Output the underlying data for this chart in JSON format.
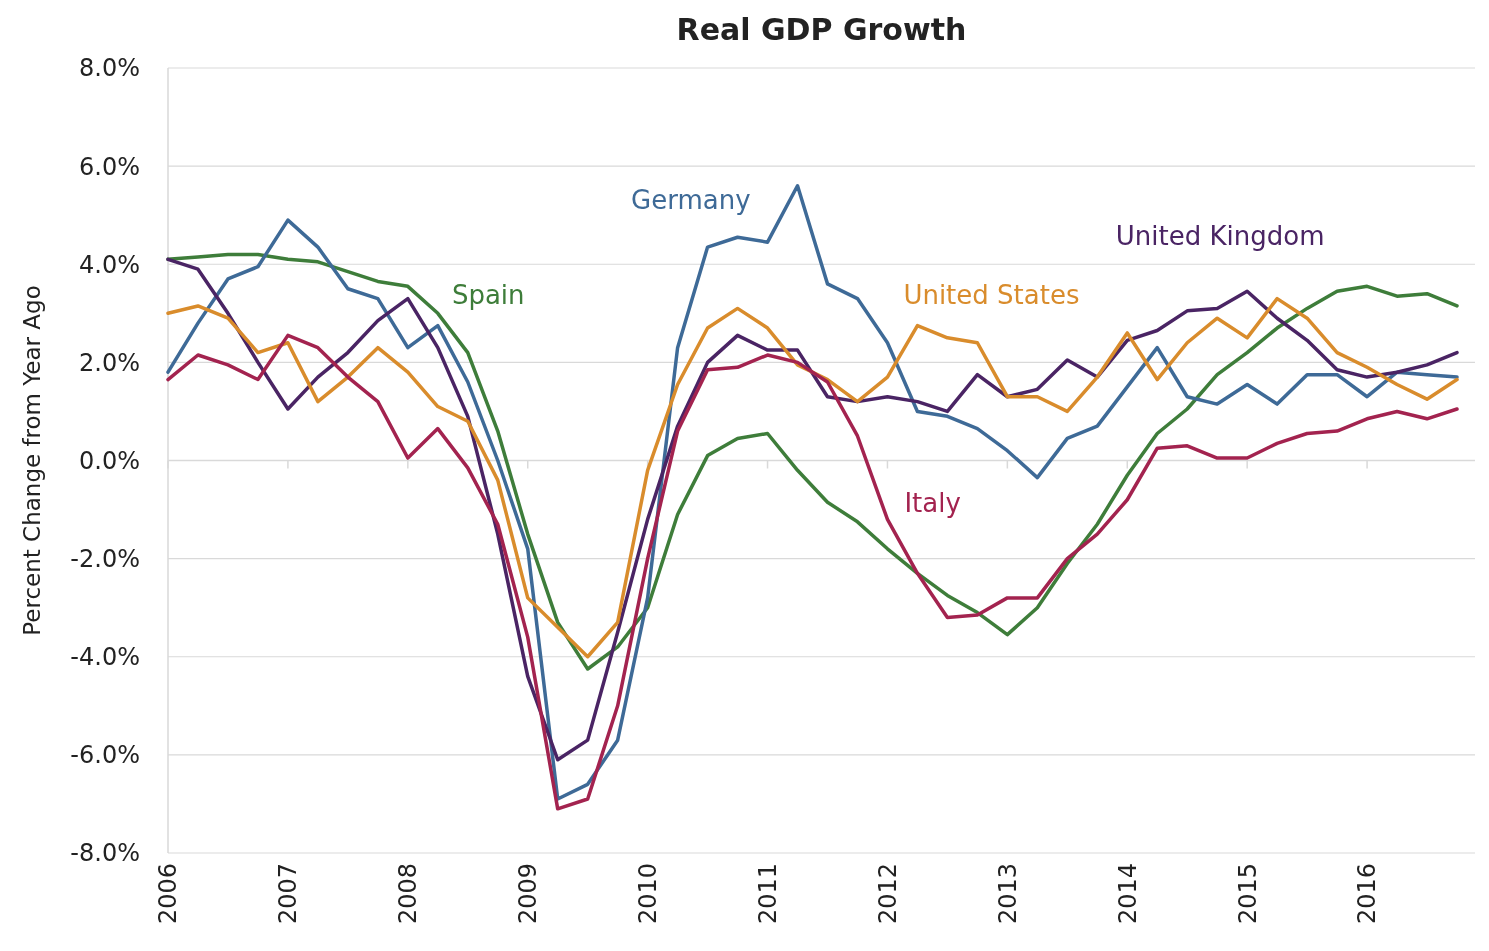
{
  "chart_data": {
    "type": "line",
    "title": "Real GDP Growth",
    "ylabel": "Percent Change from Year Ago",
    "x": [
      2006,
      2006.25,
      2006.5,
      2006.75,
      2007,
      2007.25,
      2007.5,
      2007.75,
      2008,
      2008.25,
      2008.5,
      2008.75,
      2009,
      2009.25,
      2009.5,
      2009.75,
      2010,
      2010.25,
      2010.5,
      2010.75,
      2011,
      2011.25,
      2011.5,
      2011.75,
      2012,
      2012.25,
      2012.5,
      2012.75,
      2013,
      2013.25,
      2013.5,
      2013.75,
      2014,
      2014.25,
      2014.5,
      2014.75,
      2015,
      2015.25,
      2015.5,
      2015.75,
      2016,
      2016.25,
      2016.5,
      2016.75
    ],
    "xlim": [
      2006,
      2016.9
    ],
    "xticks": [
      2006,
      2007,
      2008,
      2009,
      2010,
      2011,
      2012,
      2013,
      2014,
      2015,
      2016
    ],
    "ylim": [
      -8,
      8
    ],
    "yticks": [
      {
        "value": -8,
        "label": "-8.0%"
      },
      {
        "value": -6,
        "label": "-6.0%"
      },
      {
        "value": -4,
        "label": "-4.0%"
      },
      {
        "value": -2,
        "label": "-2.0%"
      },
      {
        "value": 0,
        "label": "0.0%"
      },
      {
        "value": 2,
        "label": "2.0%"
      },
      {
        "value": 4,
        "label": "4.0%"
      },
      {
        "value": 6,
        "label": "6.0%"
      },
      {
        "value": 8,
        "label": "8.0%"
      }
    ],
    "grid": "y",
    "line_style": "solid",
    "marker": "none",
    "series": [
      {
        "name": "Spain",
        "color": "#3e7d3a",
        "values": [
          4.1,
          4.15,
          4.2,
          4.2,
          4.1,
          4.05,
          3.85,
          3.65,
          3.55,
          3.0,
          2.2,
          0.6,
          -1.5,
          -3.3,
          -4.25,
          -3.8,
          -3.0,
          -1.1,
          0.1,
          0.45,
          0.55,
          -0.2,
          -0.85,
          -1.25,
          -1.8,
          -2.3,
          -2.75,
          -3.1,
          -3.55,
          -3.0,
          -2.1,
          -1.3,
          -0.3,
          0.55,
          1.05,
          1.75,
          2.2,
          2.7,
          3.1,
          3.45,
          3.55,
          3.35,
          3.4,
          3.15
        ]
      },
      {
        "name": "Germany",
        "color": "#3e6a97",
        "values": [
          1.8,
          2.8,
          3.7,
          3.95,
          4.9,
          4.35,
          3.5,
          3.3,
          2.3,
          2.75,
          1.6,
          0.0,
          -1.8,
          -6.9,
          -6.6,
          -5.7,
          -2.8,
          2.3,
          4.35,
          4.55,
          4.45,
          5.6,
          3.6,
          3.3,
          2.4,
          1.0,
          0.9,
          0.65,
          0.2,
          -0.35,
          0.45,
          0.7,
          1.5,
          2.3,
          1.3,
          1.15,
          1.55,
          1.15,
          1.75,
          1.75,
          1.3,
          1.8,
          1.75,
          1.7
        ]
      },
      {
        "name": "United Kingdom",
        "color": "#4a2464",
        "values": [
          4.1,
          3.9,
          3.0,
          2.0,
          1.05,
          1.7,
          2.2,
          2.85,
          3.3,
          2.3,
          0.9,
          -1.5,
          -4.4,
          -6.1,
          -5.7,
          -3.5,
          -1.2,
          0.7,
          2.0,
          2.55,
          2.25,
          2.25,
          1.3,
          1.2,
          1.3,
          1.2,
          1.0,
          1.75,
          1.3,
          1.45,
          2.05,
          1.7,
          2.45,
          2.65,
          3.05,
          3.1,
          3.45,
          2.9,
          2.45,
          1.85,
          1.7,
          1.8,
          1.95,
          2.2
        ]
      },
      {
        "name": "United States",
        "color": "#d98c2c",
        "values": [
          3.0,
          3.15,
          2.9,
          2.2,
          2.4,
          1.2,
          1.7,
          2.3,
          1.8,
          1.1,
          0.8,
          -0.4,
          -2.8,
          -3.4,
          -4.0,
          -3.3,
          -0.2,
          1.55,
          2.7,
          3.1,
          2.7,
          1.95,
          1.65,
          1.2,
          1.7,
          2.75,
          2.5,
          2.4,
          1.3,
          1.3,
          1.0,
          1.7,
          2.6,
          1.65,
          2.4,
          2.9,
          2.5,
          3.3,
          2.9,
          2.2,
          1.9,
          1.55,
          1.25,
          1.65
        ]
      },
      {
        "name": "Italy",
        "color": "#a3234f",
        "values": [
          1.65,
          2.15,
          1.95,
          1.65,
          2.55,
          2.3,
          1.7,
          1.2,
          0.05,
          0.65,
          -0.15,
          -1.3,
          -3.6,
          -7.1,
          -6.9,
          -5.0,
          -2.0,
          0.6,
          1.85,
          1.9,
          2.15,
          2.0,
          1.6,
          0.5,
          -1.2,
          -2.3,
          -3.2,
          -3.15,
          -2.8,
          -2.8,
          -2.0,
          -1.5,
          -0.8,
          0.25,
          0.3,
          0.05,
          0.05,
          0.35,
          0.55,
          0.6,
          0.85,
          1.0,
          0.85,
          1.05
        ]
      }
    ]
  }
}
